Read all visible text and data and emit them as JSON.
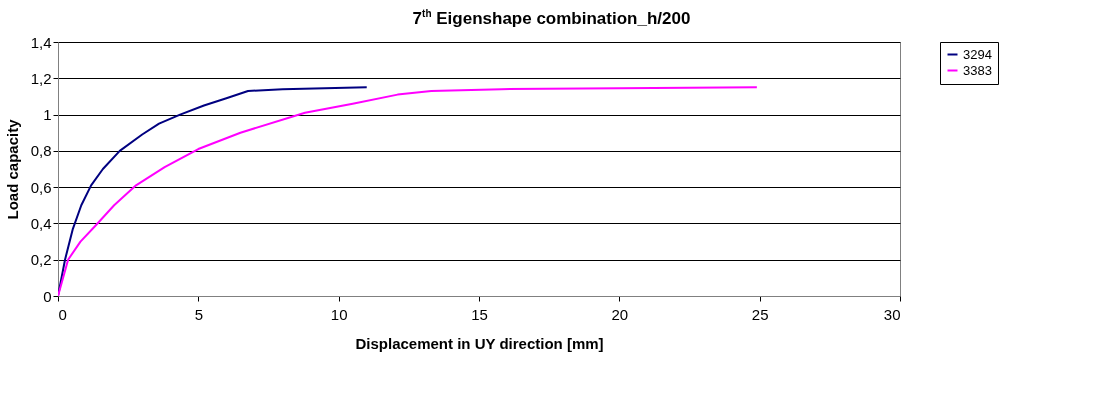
{
  "chart_data": {
    "type": "line",
    "title": "7$^{th}$ Eigenshape combination_h/200",
    "xlabel": "Displacement in UY direction  [mm]",
    "ylabel": "Load capacity",
    "xlim": [
      0,
      30
    ],
    "xticks": [
      0,
      5,
      10,
      15,
      20,
      25,
      30
    ],
    "ylim": [
      0,
      1.4
    ],
    "yticks": [
      {
        "value": 0,
        "label": "0"
      },
      {
        "value": 0.2,
        "label": "0,2"
      },
      {
        "value": 0.4,
        "label": "0,4"
      },
      {
        "value": 0.6,
        "label": "0,6"
      },
      {
        "value": 0.8,
        "label": "0,8"
      },
      {
        "value": 1,
        "label": "1"
      },
      {
        "value": 1.2,
        "label": "1,2"
      },
      {
        "value": 1.4,
        "label": "1,4"
      }
    ],
    "grid": "y",
    "legend": "right",
    "marker": "none",
    "line_style": "solid",
    "series": [
      {
        "name": "3294",
        "color": "#000080",
        "x": [
          0,
          0.25,
          0.53,
          0.83,
          1.18,
          1.6,
          2.2,
          3.0,
          3.6,
          4.35,
          5.2,
          6.0,
          6.77,
          8.0,
          11.0
        ],
        "values": [
          0,
          0.2,
          0.37,
          0.5,
          0.61,
          0.7,
          0.8,
          0.89,
          0.95,
          1.0,
          1.05,
          1.09,
          1.13,
          1.14,
          1.15
        ]
      },
      {
        "name": "3383",
        "color": "#ff00ff",
        "x": [
          0,
          0.36,
          0.8,
          1.35,
          2.0,
          2.78,
          3.8,
          5.0,
          6.5,
          8.8,
          10.5,
          12.1,
          13.3,
          15.8,
          20.0,
          24.9
        ],
        "values": [
          0,
          0.2,
          0.3,
          0.39,
          0.5,
          0.61,
          0.71,
          0.81,
          0.9,
          1.01,
          1.06,
          1.11,
          1.13,
          1.14,
          1.145,
          1.15
        ]
      }
    ]
  }
}
